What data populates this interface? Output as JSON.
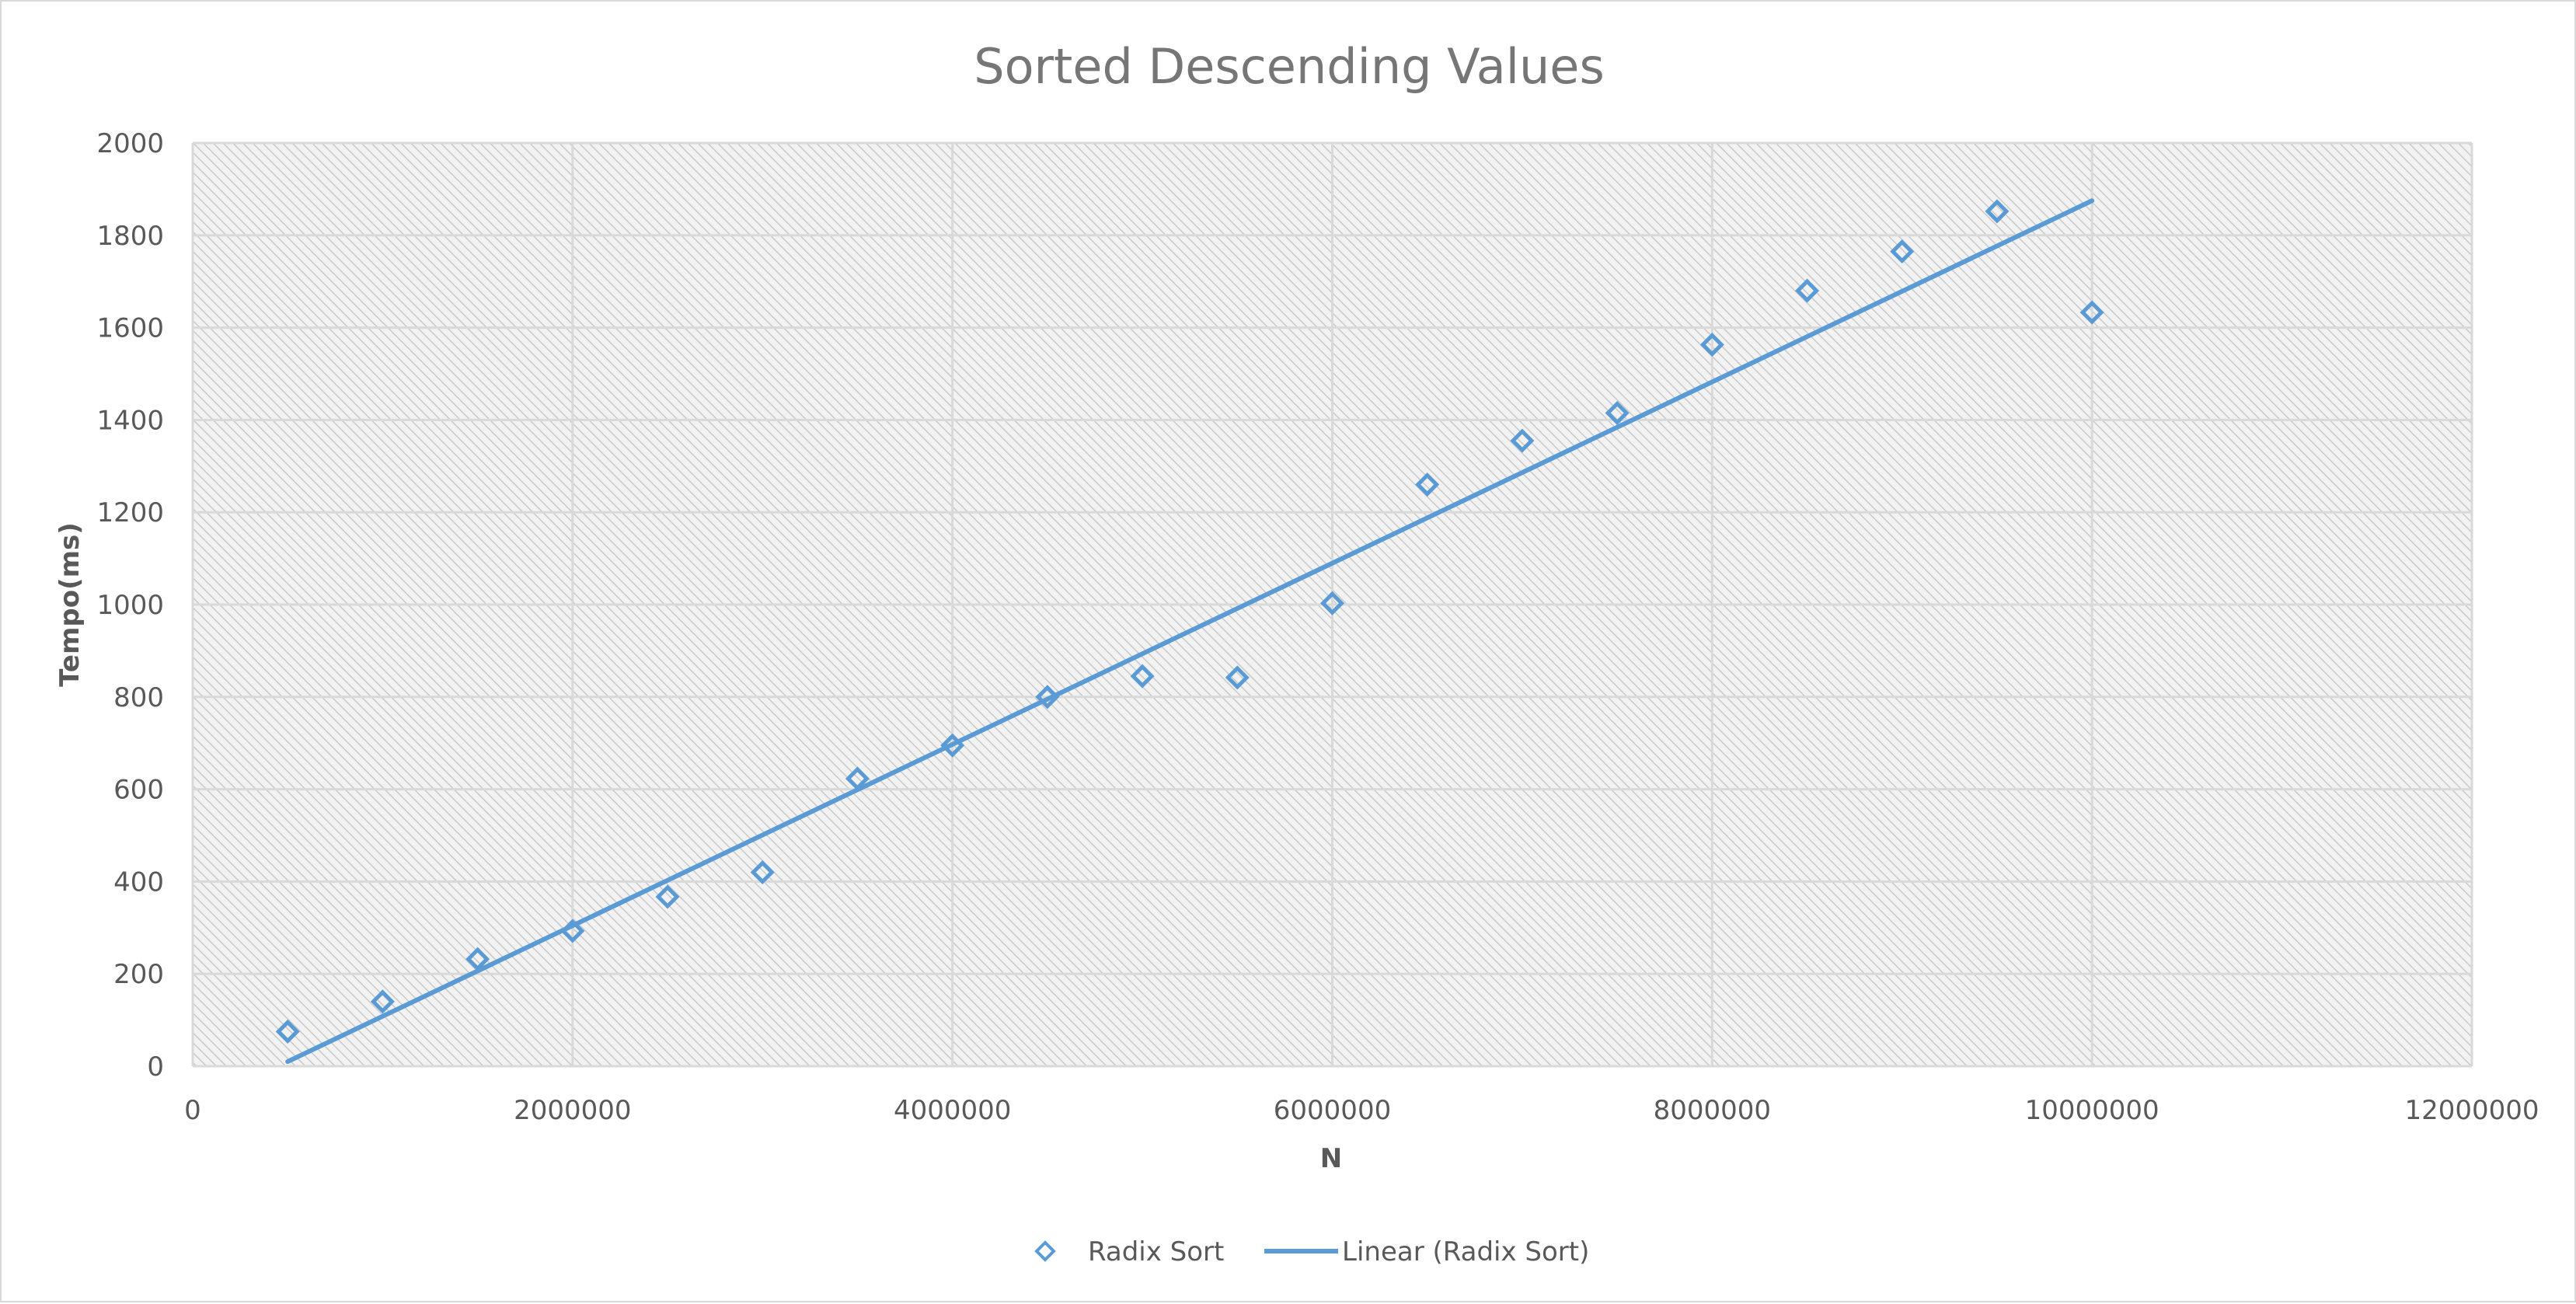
{
  "chart_data": {
    "type": "scatter",
    "title": "Sorted Descending Values",
    "xlabel": "N",
    "ylabel": "Tempo(ms)",
    "xlim": [
      0,
      12000000
    ],
    "ylim": [
      0,
      2000
    ],
    "x_ticks": [
      0,
      2000000,
      4000000,
      6000000,
      8000000,
      10000000,
      12000000
    ],
    "x_tick_labels": [
      "0",
      "2000000",
      "4000000",
      "6000000",
      "8000000",
      "10000000",
      "12000000"
    ],
    "y_ticks": [
      0,
      200,
      400,
      600,
      800,
      1000,
      1200,
      1400,
      1600,
      1800,
      2000
    ],
    "y_tick_labels": [
      "0",
      "200",
      "400",
      "600",
      "800",
      "1000",
      "1200",
      "1400",
      "1600",
      "1800",
      "2000"
    ],
    "grid": true,
    "legend_position": "bottom",
    "series": [
      {
        "name": "Radix Sort",
        "marker": "diamond-open",
        "color": "#5b9bd5",
        "x": [
          500000,
          1000000,
          1500000,
          2000000,
          2500000,
          3000000,
          3500000,
          4000000,
          4500000,
          5000000,
          5500000,
          6000000,
          6500000,
          7000000,
          7500000,
          8000000,
          8500000,
          9000000,
          9500000,
          10000000
        ],
        "y": [
          75,
          140,
          232,
          293,
          367,
          420,
          623,
          695,
          800,
          845,
          842,
          1003,
          1260,
          1355,
          1415,
          1563,
          1680,
          1765,
          1852,
          1633
        ]
      }
    ],
    "trendline": {
      "name": "Linear (Radix Sort)",
      "type": "linear",
      "color": "#5b9bd5",
      "x": [
        500000,
        10000000
      ],
      "y": [
        10,
        1875
      ]
    },
    "colors": {
      "plot_background": "#f2f2f2",
      "hatch": "#c8c8c8",
      "gridline": "#d9d9d9",
      "text": "#595959",
      "title": "#767676"
    }
  }
}
